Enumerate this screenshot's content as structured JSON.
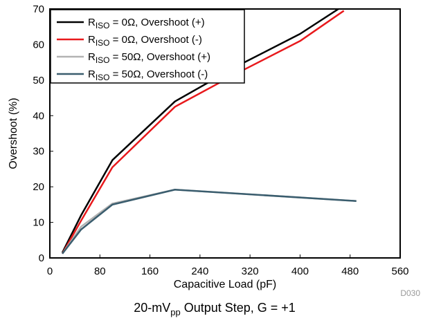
{
  "chart_data": {
    "type": "line",
    "xlabel": "Capacitive Load (pF)",
    "ylabel": "Overshoot (%)",
    "xlim": [
      0,
      560
    ],
    "ylim": [
      0,
      70
    ],
    "xticks": [
      0,
      80,
      160,
      240,
      320,
      400,
      480,
      560
    ],
    "yticks": [
      0,
      10,
      20,
      30,
      40,
      50,
      60,
      70
    ],
    "grid": false,
    "legend_placement": "top-left",
    "series": [
      {
        "name": "R_ISO = 0Ω, Overshoot (+)",
        "legend": {
          "pre": "R",
          "sub": "ISO",
          "post": " = 0Ω, Overshoot (+)"
        },
        "color": "#000000",
        "x": [
          20,
          50,
          100,
          200,
          300,
          400,
          470
        ],
        "y": [
          1.5,
          12,
          27.5,
          44,
          54,
          63,
          71
        ]
      },
      {
        "name": "R_ISO = 0Ω, Overshoot (-)",
        "legend": {
          "pre": "R",
          "sub": "ISO",
          "post": " = 0Ω, Overshoot (-)"
        },
        "color": "#e8191c",
        "x": [
          20,
          50,
          100,
          200,
          300,
          400,
          470
        ],
        "y": [
          1.2,
          10.5,
          25.5,
          42.5,
          52,
          61,
          69.5
        ]
      },
      {
        "name": "R_ISO = 50Ω, Overshoot (+)",
        "legend": {
          "pre": "R",
          "sub": "ISO",
          "post": " = 50Ω, Overshoot (+)"
        },
        "color": "#b3b3b3",
        "x": [
          20,
          50,
          100,
          200,
          490
        ],
        "y": [
          1.2,
          8.8,
          15.3,
          19.2,
          16
        ]
      },
      {
        "name": "R_ISO = 50Ω, Overshoot (-)",
        "legend": {
          "pre": "R",
          "sub": "ISO",
          "post": " = 50Ω, Overshoot (-)"
        },
        "color": "#3a5d6e",
        "x": [
          20,
          50,
          100,
          200,
          490
        ],
        "y": [
          1.2,
          8,
          15,
          19.2,
          16
        ]
      }
    ],
    "code_label": "D030",
    "caption": {
      "pre": "20-mV",
      "sub": "pp",
      "post": " Output Step, G = +1"
    }
  }
}
